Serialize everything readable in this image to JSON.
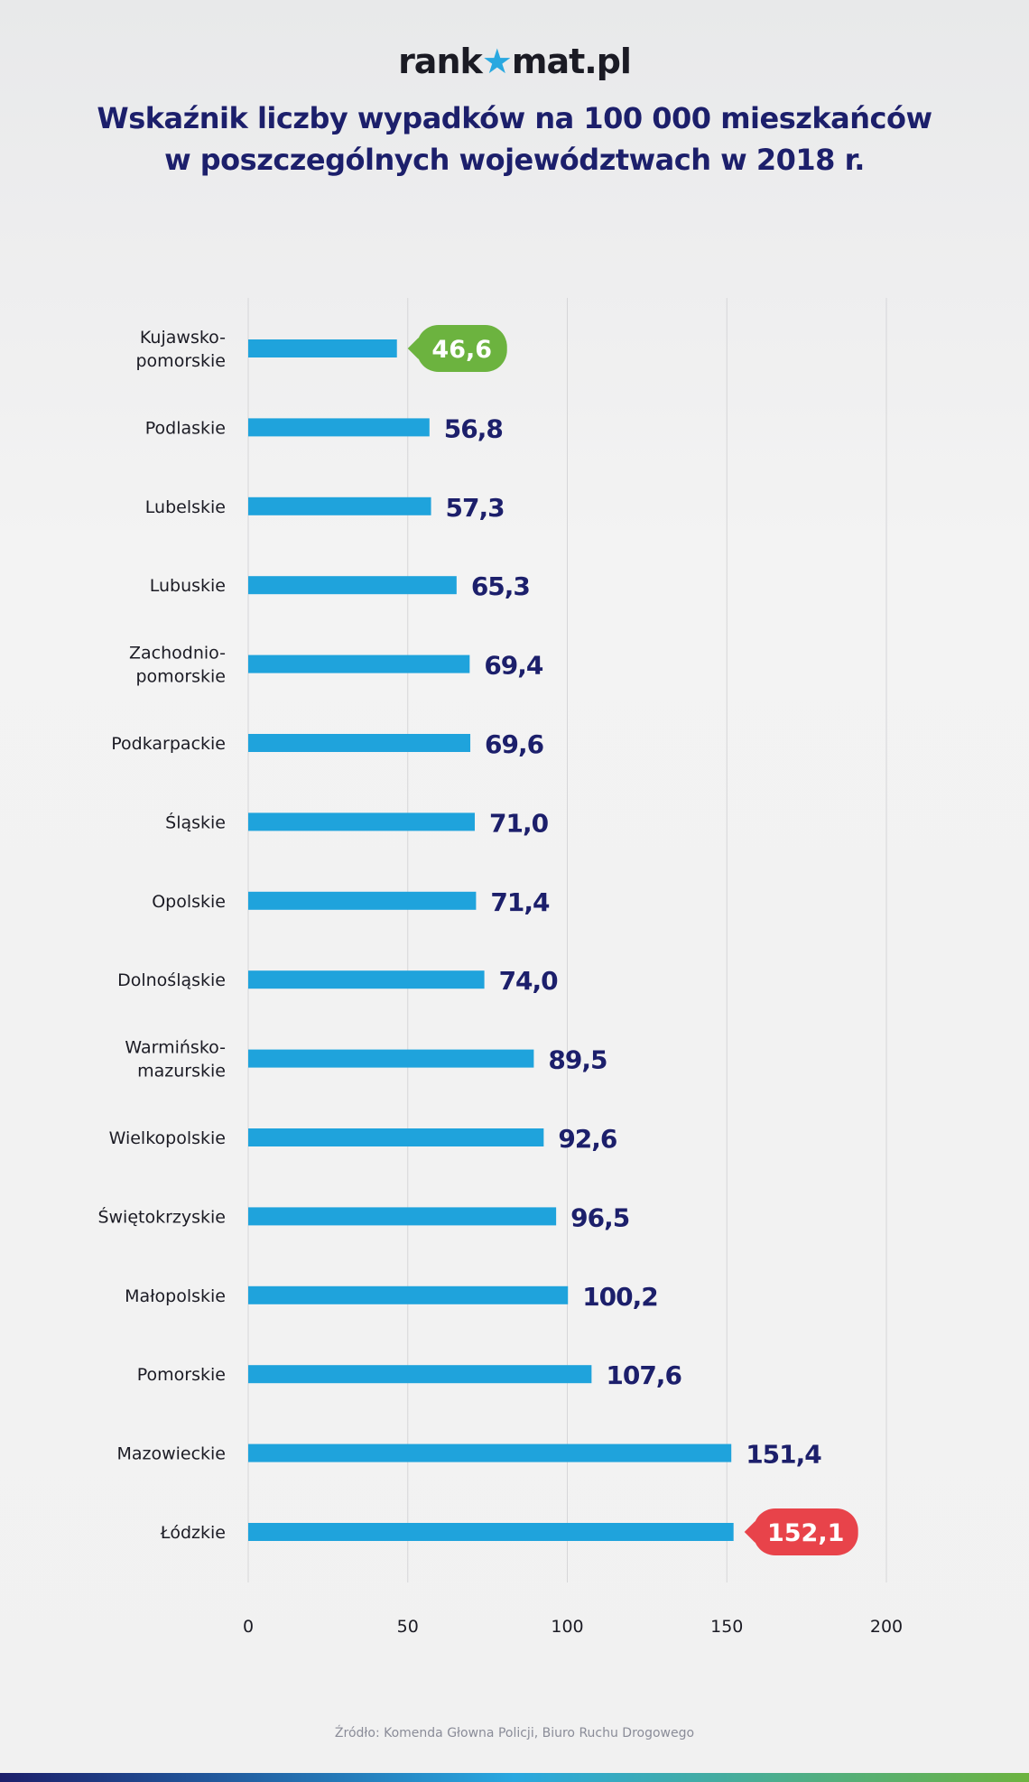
{
  "logo": {
    "text_before": "rank",
    "text_after": "mat.pl",
    "star": "★"
  },
  "title": {
    "line1": "Wskaźnik liczby wypadków na 100 000 mieszkańców",
    "line2": "w poszczególnych województwach w 2018 r."
  },
  "source": "Źródło: Komenda Głowna Policji, Biuro Ruchu Drogowego",
  "chart_data": {
    "type": "bar",
    "orientation": "horizontal",
    "categories": [
      [
        "Kujawsko-",
        "pomorskie"
      ],
      [
        "Podlaskie"
      ],
      [
        "Lubelskie"
      ],
      [
        "Lubuskie"
      ],
      [
        "Zachodnio-",
        "pomorskie"
      ],
      [
        "Podkarpackie"
      ],
      [
        "Śląskie"
      ],
      [
        "Opolskie"
      ],
      [
        "Dolnośląskie"
      ],
      [
        "Warmińsko-",
        "mazurskie"
      ],
      [
        "Wielkopolskie"
      ],
      [
        "Świętokrzyskie"
      ],
      [
        "Małopolskie"
      ],
      [
        "Pomorskie"
      ],
      [
        "Mazowieckie"
      ],
      [
        "Łódzkie"
      ]
    ],
    "values": [
      46.6,
      56.8,
      57.3,
      65.3,
      69.4,
      69.6,
      71.0,
      71.4,
      74.0,
      89.5,
      92.6,
      96.5,
      100.2,
      107.6,
      151.4,
      152.1
    ],
    "value_labels": [
      "46,6",
      "56,8",
      "57,3",
      "65,3",
      "69,4",
      "69,6",
      "71,0",
      "71,4",
      "74,0",
      "89,5",
      "92,6",
      "96,5",
      "100,2",
      "107,6",
      "151,4",
      "152,1"
    ],
    "xlim": [
      0,
      200
    ],
    "xticks": [
      "0",
      "50",
      "100",
      "150",
      "200"
    ],
    "grid": true,
    "colors": {
      "bar": "#1fa3dc",
      "label": "#1c1f6b",
      "min_badge": "#6cb33f",
      "max_badge": "#e8434a"
    },
    "highlight": {
      "min_index": 0,
      "max_index": 15
    }
  }
}
